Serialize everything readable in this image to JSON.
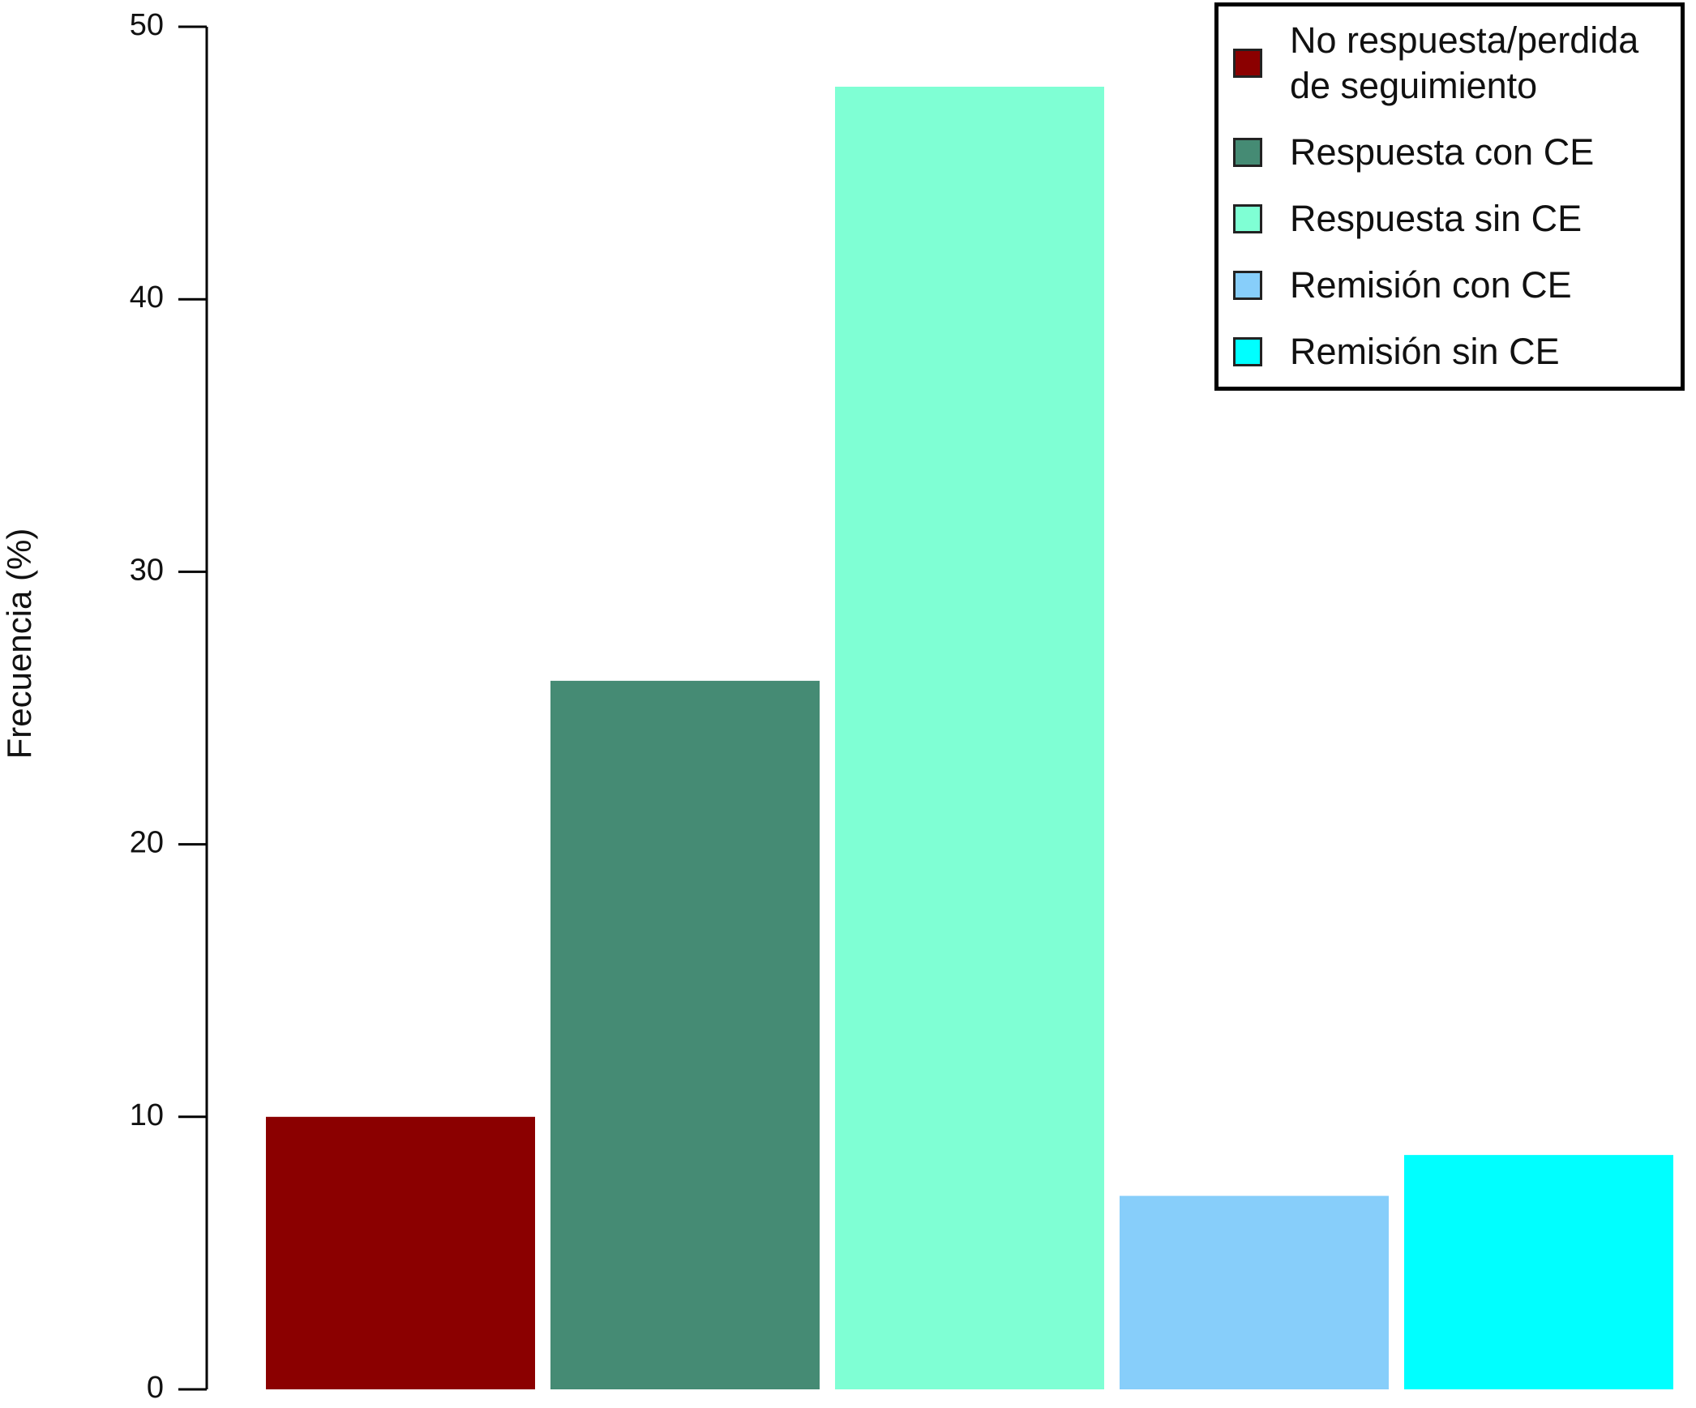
{
  "chart_data": {
    "type": "bar",
    "y_label": "Frecuencia (%)",
    "categories": [
      "No respuesta/perdida de seguimiento",
      "Respuesta con CE",
      "Respuesta sin CE",
      "Remisión con CE",
      "Remisión sin CE"
    ],
    "values": [
      10,
      26,
      47.8,
      7.1,
      8.6
    ],
    "colors": [
      "#8b0000",
      "#458b74",
      "#7fffd4",
      "#87cefa",
      "#00ffff"
    ],
    "ylim": [
      0,
      50
    ],
    "yticks": [
      0,
      10,
      20,
      30,
      40,
      50
    ],
    "grid": false,
    "legend": "upper right"
  }
}
